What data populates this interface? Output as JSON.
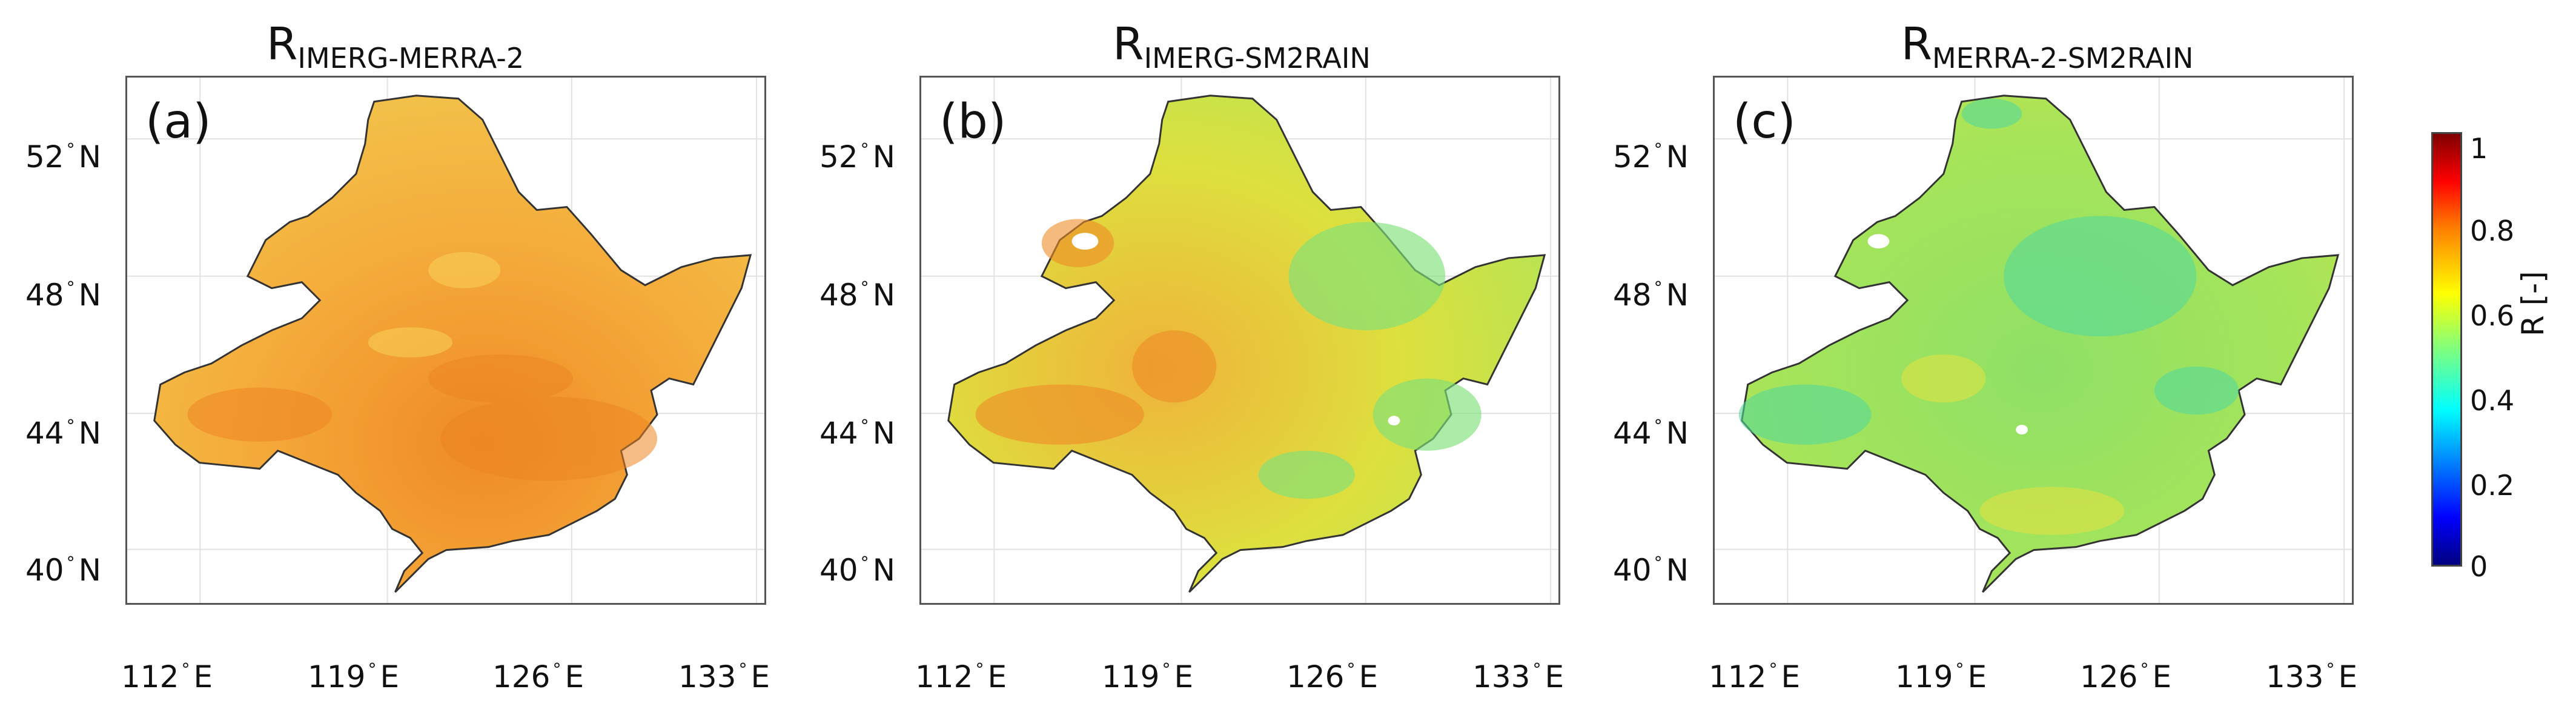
{
  "panels": [
    {
      "id": "a",
      "label": "(a)",
      "title_main": "R",
      "title_sub": "IMERG-MERRA-2",
      "base_color": "#f2a83a"
    },
    {
      "id": "b",
      "label": "(b)",
      "title_main": "R",
      "title_sub": "IMERG-SM2RAIN",
      "base_color": "#d9df3e"
    },
    {
      "id": "c",
      "label": "(c)",
      "title_main": "R",
      "title_sub": "MERRA-2-SM2RAIN",
      "base_color": "#a3e25a"
    }
  ],
  "lat_ticks": [
    {
      "value": "52",
      "hemi": "N"
    },
    {
      "value": "48",
      "hemi": "N"
    },
    {
      "value": "44",
      "hemi": "N"
    },
    {
      "value": "40",
      "hemi": "N"
    }
  ],
  "lon_ticks": [
    {
      "value": "112",
      "hemi": "E"
    },
    {
      "value": "119",
      "hemi": "E"
    },
    {
      "value": "126",
      "hemi": "E"
    },
    {
      "value": "133",
      "hemi": "E"
    }
  ],
  "colorbar": {
    "label": "R [-]",
    "ticks": [
      "1",
      "0.8",
      "0.6",
      "0.4",
      "0.2",
      "0"
    ],
    "range": [
      0,
      1
    ],
    "colormap": "jet"
  }
}
